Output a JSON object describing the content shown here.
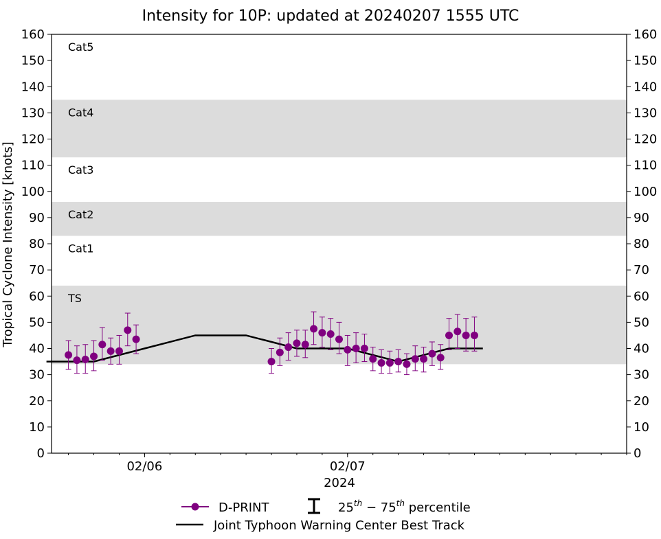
{
  "chart_data": {
    "type": "line",
    "title": "Intensity for 10P: updated at 20240207 1555 UTC",
    "ylabel": "Tropical Cyclone Intensity [knots]",
    "xlabel": "2024",
    "ylim": [
      0,
      160
    ],
    "yticks": [
      0,
      10,
      20,
      30,
      40,
      50,
      60,
      70,
      80,
      90,
      100,
      110,
      120,
      130,
      140,
      150,
      160
    ],
    "xlim_hours": [
      -11,
      57
    ],
    "x_unit": "hours since 2024-02-06 00 UTC",
    "xticks": [
      {
        "hour": 0,
        "label": "02/06"
      },
      {
        "hour": 24,
        "label": "02/07"
      }
    ],
    "minor_xticks": [
      -12,
      -9,
      -6,
      -3,
      0,
      3,
      6,
      9,
      12,
      15,
      18,
      21,
      24,
      27,
      30,
      33,
      36,
      39,
      42,
      45,
      48,
      51,
      54,
      57
    ],
    "categories": [
      {
        "label": "TS",
        "ymin": 34,
        "ymax": 64,
        "shaded": true
      },
      {
        "label": "Cat1",
        "ymin": 64,
        "ymax": 83,
        "shaded": false
      },
      {
        "label": "Cat2",
        "ymin": 83,
        "ymax": 96,
        "shaded": true
      },
      {
        "label": "Cat3",
        "ymin": 96,
        "ymax": 113,
        "shaded": false
      },
      {
        "label": "Cat4",
        "ymin": 113,
        "ymax": 135,
        "shaded": true
      },
      {
        "label": "Cat5",
        "ymin": 135,
        "ymax": 160,
        "shaded": false
      }
    ],
    "category_shade_color": "#dcdcdc",
    "series": [
      {
        "name": "D-PRINT",
        "color": "#800080",
        "points": [
          {
            "x": -9.0,
            "y": 37.5,
            "lo": 32,
            "hi": 43
          },
          {
            "x": -8.0,
            "y": 35.5,
            "lo": 30.5,
            "hi": 41
          },
          {
            "x": -7.0,
            "y": 35.8,
            "lo": 30.5,
            "hi": 41.5
          },
          {
            "x": -6.0,
            "y": 37.0,
            "lo": 31.5,
            "hi": 43
          },
          {
            "x": -5.0,
            "y": 41.5,
            "lo": 35.5,
            "hi": 48
          },
          {
            "x": -4.0,
            "y": 39.0,
            "lo": 34,
            "hi": 44
          },
          {
            "x": -3.0,
            "y": 39.0,
            "lo": 34,
            "hi": 45
          },
          {
            "x": -2.0,
            "y": 47.0,
            "lo": 41,
            "hi": 53.5
          },
          {
            "x": -1.0,
            "y": 43.5,
            "lo": 38,
            "hi": 49
          },
          {
            "x": 15.0,
            "y": 35.0,
            "lo": 30.5,
            "hi": 40
          },
          {
            "x": 16.0,
            "y": 38.5,
            "lo": 33.5,
            "hi": 44
          },
          {
            "x": 17.0,
            "y": 40.5,
            "lo": 35.5,
            "hi": 46
          },
          {
            "x": 18.0,
            "y": 42.0,
            "lo": 37,
            "hi": 47
          },
          {
            "x": 19.0,
            "y": 41.5,
            "lo": 36.5,
            "hi": 47
          },
          {
            "x": 20.0,
            "y": 47.5,
            "lo": 41.5,
            "hi": 54
          },
          {
            "x": 21.0,
            "y": 46.0,
            "lo": 40.5,
            "hi": 52
          },
          {
            "x": 22.0,
            "y": 45.5,
            "lo": 39.5,
            "hi": 51.5
          },
          {
            "x": 23.0,
            "y": 43.5,
            "lo": 38,
            "hi": 50
          },
          {
            "x": 24.0,
            "y": 39.5,
            "lo": 33.5,
            "hi": 45
          },
          {
            "x": 25.0,
            "y": 40.0,
            "lo": 34.5,
            "hi": 46
          },
          {
            "x": 26.0,
            "y": 40.0,
            "lo": 35,
            "hi": 45.5
          },
          {
            "x": 27.0,
            "y": 36.0,
            "lo": 31.5,
            "hi": 40.5
          },
          {
            "x": 28.0,
            "y": 34.5,
            "lo": 30.5,
            "hi": 39.5
          },
          {
            "x": 29.0,
            "y": 34.5,
            "lo": 30.5,
            "hi": 39
          },
          {
            "x": 30.0,
            "y": 35.0,
            "lo": 31,
            "hi": 39.5
          },
          {
            "x": 31.0,
            "y": 34.0,
            "lo": 30,
            "hi": 38
          },
          {
            "x": 32.0,
            "y": 36.0,
            "lo": 31.5,
            "hi": 41
          },
          {
            "x": 33.0,
            "y": 36.0,
            "lo": 31,
            "hi": 40.5
          },
          {
            "x": 34.0,
            "y": 38.0,
            "lo": 33.5,
            "hi": 42.5
          },
          {
            "x": 35.0,
            "y": 36.5,
            "lo": 32,
            "hi": 41.5
          },
          {
            "x": 36.0,
            "y": 45.0,
            "lo": 39.5,
            "hi": 51.5
          },
          {
            "x": 37.0,
            "y": 46.5,
            "lo": 40,
            "hi": 53
          },
          {
            "x": 38.0,
            "y": 45.0,
            "lo": 39,
            "hi": 51.5
          },
          {
            "x": 39.0,
            "y": 45.0,
            "lo": 39,
            "hi": 52
          }
        ]
      },
      {
        "name": "Joint Typhoon Warning Center Best Track",
        "color": "#000000",
        "points": [
          {
            "x": -12,
            "y": 35
          },
          {
            "x": -6,
            "y": 35
          },
          {
            "x": 0,
            "y": 40
          },
          {
            "x": 6,
            "y": 45
          },
          {
            "x": 12,
            "y": 45
          },
          {
            "x": 18,
            "y": 40
          },
          {
            "x": 24,
            "y": 40
          },
          {
            "x": 30,
            "y": 35
          },
          {
            "x": 36,
            "y": 40
          },
          {
            "x": 40,
            "y": 40
          }
        ]
      }
    ],
    "legend": {
      "placement": "bottom-center",
      "items": [
        {
          "label": "D-PRINT",
          "kind": "marker-line"
        },
        {
          "label": "25th − 75th percentile",
          "kind": "errorbar",
          "sup1": "th",
          "sup2": "th",
          "base1": "25",
          "mid": " − 75",
          "tail": " percentile"
        },
        {
          "label": "Joint Typhoon Warning Center Best Track",
          "kind": "line"
        }
      ]
    }
  }
}
